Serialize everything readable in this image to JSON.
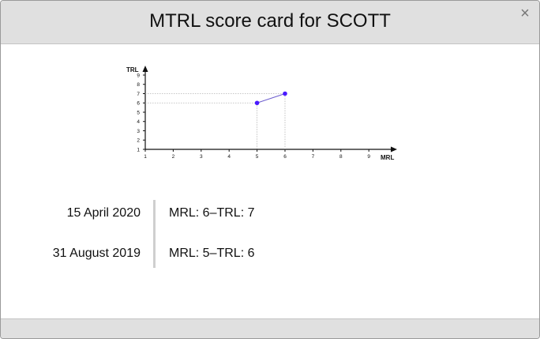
{
  "dialog": {
    "title": "MTRL score card for SCOTT",
    "close_symbol": "×"
  },
  "chart_data": {
    "type": "line",
    "xlabel": "MRL",
    "ylabel": "TRL",
    "xlim": [
      1,
      9
    ],
    "ylim": [
      1,
      9
    ],
    "x_ticks": [
      "1",
      "2",
      "3",
      "4",
      "5",
      "6",
      "7",
      "8",
      "9"
    ],
    "y_ticks": [
      "1",
      "2",
      "3",
      "4",
      "5",
      "6",
      "7",
      "8",
      "9"
    ],
    "points": [
      {
        "x": 5,
        "y": 6
      },
      {
        "x": 6,
        "y": 7
      }
    ],
    "grid": false,
    "guide_lines": "dotted",
    "point_color": "#4a1aff",
    "line_color": "#6a5acd"
  },
  "history": [
    {
      "date": "15 April 2020",
      "score": "MRL: 6–TRL: 7"
    },
    {
      "date": "31 August 2019",
      "score": "MRL: 5–TRL: 6"
    }
  ]
}
